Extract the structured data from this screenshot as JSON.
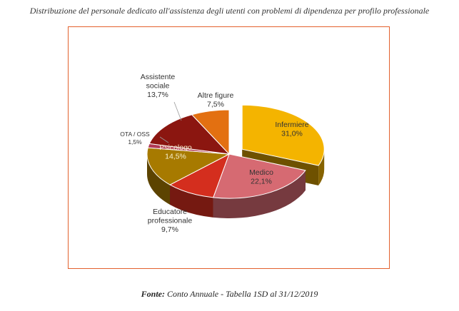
{
  "page": {
    "title": "Distribuzione del personale dedicato all'assistenza degli utenti con problemi di dipendenza per profilo professionale",
    "source_prefix": "Fonte:",
    "source_text": "Conto Annuale - Tabella 1SD al 31/12/2019"
  },
  "chart_data": {
    "type": "pie",
    "title": "",
    "exploded": "Infermiere",
    "slices": [
      {
        "name": "Infermiere",
        "value": 31.0,
        "label": "31,0%",
        "color": "#f4b400"
      },
      {
        "name": "Medico",
        "value": 22.1,
        "label": "22,1%",
        "color": "#d66a72"
      },
      {
        "name": "Educatore professionale",
        "value": 9.7,
        "label": "9,7%",
        "color": "#d42e1e"
      },
      {
        "name": "Psicologo",
        "value": 14.5,
        "label": "14,5%",
        "color": "#a77a00"
      },
      {
        "name": "OTA / OSS",
        "value": 1.5,
        "label": "1,5%",
        "color": "#b13a55"
      },
      {
        "name": "Assistente sociale",
        "value": 13.7,
        "label": "13,7%",
        "color": "#8b1610"
      },
      {
        "name": "Altre figure",
        "value": 7.5,
        "label": "7,5%",
        "color": "#e37011"
      }
    ],
    "label_lines": {
      "Assistente sociale": [
        "Assistente",
        "sociale"
      ],
      "Educatore professionale": [
        "Educatore",
        "professionale"
      ]
    }
  }
}
